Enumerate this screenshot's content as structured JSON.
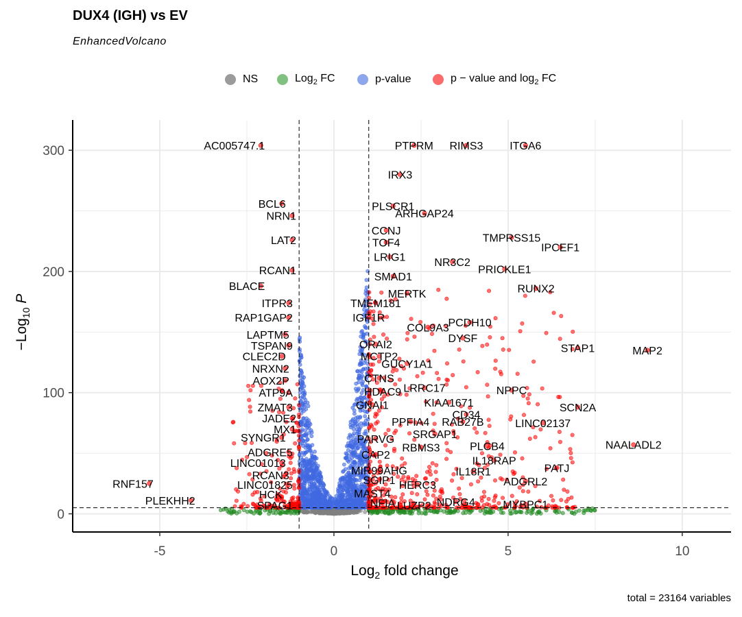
{
  "title": "DUX4 (IGH) vs EV",
  "subtitle": "EnhancedVolcano",
  "caption": "total = 23164 variables",
  "legend": [
    {
      "label": "NS",
      "color": "#808080"
    },
    {
      "label": "Log",
      "sub": "2",
      "suffix": " FC",
      "color": "#2ca02c"
    },
    {
      "label": "p-value",
      "color": "#4169e1"
    },
    {
      "label": "p − value and log",
      "sub": "2",
      "suffix": " FC",
      "color": "#ff0000"
    }
  ],
  "colors": {
    "NS": "#808080",
    "FC": "#228b22",
    "P": "#4169e1",
    "FC_P": "#ff0000",
    "grid": "#ebebeb"
  },
  "chart_data": {
    "type": "scatter",
    "xlabel": "Log2 fold change",
    "ylabel": "−Log10 P",
    "xlim": [
      -7.5,
      11.4
    ],
    "ylim": [
      -15,
      325
    ],
    "xticks": [
      -5,
      0,
      5,
      10
    ],
    "yticks": [
      0,
      100,
      200,
      300
    ],
    "fc_cutoff": [
      -1,
      1
    ],
    "p_cutoff_log10": 5,
    "grid": true,
    "labeled_genes": [
      {
        "gene": "AC005747.1",
        "x": -2.1,
        "y": 304
      },
      {
        "gene": "PTPRM",
        "x": 2.3,
        "y": 304
      },
      {
        "gene": "RIMS3",
        "x": 3.8,
        "y": 304
      },
      {
        "gene": "ITGA6",
        "x": 5.5,
        "y": 304
      },
      {
        "gene": "IRX3",
        "x": 1.9,
        "y": 280
      },
      {
        "gene": "BCL6",
        "x": -1.5,
        "y": 256
      },
      {
        "gene": "NRN1",
        "x": -1.2,
        "y": 246
      },
      {
        "gene": "PLSCR1",
        "x": 1.7,
        "y": 254
      },
      {
        "gene": "ARHGAP24",
        "x": 2.6,
        "y": 248
      },
      {
        "gene": "CCNJ",
        "x": 1.5,
        "y": 234
      },
      {
        "gene": "TOF4",
        "x": 1.5,
        "y": 224
      },
      {
        "gene": "LAT2",
        "x": -1.2,
        "y": 226
      },
      {
        "gene": "TMPRSS15",
        "x": 5.1,
        "y": 228
      },
      {
        "gene": "IPCEF1",
        "x": 6.5,
        "y": 220
      },
      {
        "gene": "LRIG1",
        "x": 1.6,
        "y": 212
      },
      {
        "gene": "NR3C2",
        "x": 3.4,
        "y": 208
      },
      {
        "gene": "PRICKLE1",
        "x": 4.9,
        "y": 202
      },
      {
        "gene": "RCAN1",
        "x": -1.2,
        "y": 201
      },
      {
        "gene": "BLACE",
        "x": -2.1,
        "y": 188
      },
      {
        "gene": "SMAD1",
        "x": 1.7,
        "y": 196
      },
      {
        "gene": "MERTK",
        "x": 2.1,
        "y": 182
      },
      {
        "gene": "RUNX2",
        "x": 5.8,
        "y": 186
      },
      {
        "gene": "ITPR3",
        "x": -1.3,
        "y": 174
      },
      {
        "gene": "TMEM181",
        "x": 1.2,
        "y": 174
      },
      {
        "gene": "RAP1GAP2",
        "x": -1.3,
        "y": 162
      },
      {
        "gene": "IGF1R",
        "x": 1.0,
        "y": 162
      },
      {
        "gene": "COL9A3",
        "x": 2.7,
        "y": 154
      },
      {
        "gene": "PCDH10",
        "x": 3.9,
        "y": 158
      },
      {
        "gene": "LAPTM5",
        "x": -1.4,
        "y": 148
      },
      {
        "gene": "DYSF",
        "x": 3.7,
        "y": 145
      },
      {
        "gene": "STAP1",
        "x": 7.0,
        "y": 137
      },
      {
        "gene": "MAP2",
        "x": 9.0,
        "y": 135
      },
      {
        "gene": "TSPAN9",
        "x": -1.3,
        "y": 139
      },
      {
        "gene": "ORAI2",
        "x": 1.2,
        "y": 140
      },
      {
        "gene": "CLEC2D",
        "x": -1.5,
        "y": 130
      },
      {
        "gene": "MCTP2",
        "x": 1.3,
        "y": 130
      },
      {
        "gene": "GUCY1A1",
        "x": 2.1,
        "y": 124
      },
      {
        "gene": "NRXN2",
        "x": -1.4,
        "y": 120
      },
      {
        "gene": "CTNS",
        "x": 1.3,
        "y": 112
      },
      {
        "gene": "AOX2P",
        "x": -1.4,
        "y": 110
      },
      {
        "gene": "LRRC17",
        "x": 2.6,
        "y": 104
      },
      {
        "gene": "HDAC9",
        "x": 1.4,
        "y": 101
      },
      {
        "gene": "NPPC",
        "x": 5.1,
        "y": 102
      },
      {
        "gene": "ATP9A",
        "x": -1.3,
        "y": 100
      },
      {
        "gene": "KIAA1671",
        "x": 3.3,
        "y": 92
      },
      {
        "gene": "ZMAT3",
        "x": -1.3,
        "y": 88
      },
      {
        "gene": "GNAI1",
        "x": 1.1,
        "y": 90
      },
      {
        "gene": "SCN2A",
        "x": 7.0,
        "y": 88
      },
      {
        "gene": "CD34",
        "x": 3.8,
        "y": 82
      },
      {
        "gene": "JADE2",
        "x": -1.2,
        "y": 79
      },
      {
        "gene": "LINC02137",
        "x": 6.0,
        "y": 75
      },
      {
        "gene": "PPFIA4",
        "x": 2.2,
        "y": 76
      },
      {
        "gene": "RAB27B",
        "x": 3.7,
        "y": 76
      },
      {
        "gene": "MX1",
        "x": -1.2,
        "y": 70
      },
      {
        "gene": "SRGAP1",
        "x": 2.9,
        "y": 66
      },
      {
        "gene": "SYNGR1",
        "x": -1.5,
        "y": 63
      },
      {
        "gene": "PARVG",
        "x": 1.2,
        "y": 62
      },
      {
        "gene": "PLCB4",
        "x": 4.4,
        "y": 56
      },
      {
        "gene": "NAALADL2",
        "x": 8.6,
        "y": 57
      },
      {
        "gene": "ADGRE5",
        "x": -1.3,
        "y": 51
      },
      {
        "gene": "RBMS3",
        "x": 2.5,
        "y": 55
      },
      {
        "gene": "CAP2",
        "x": 1.2,
        "y": 49
      },
      {
        "gene": "IL18RAP",
        "x": 4.6,
        "y": 44
      },
      {
        "gene": "LINC01013",
        "x": -1.5,
        "y": 42
      },
      {
        "gene": "PATJ",
        "x": 6.4,
        "y": 38
      },
      {
        "gene": "MIR99AHG",
        "x": 1.3,
        "y": 36
      },
      {
        "gene": "IL18R1",
        "x": 4.0,
        "y": 35
      },
      {
        "gene": "RCAN3",
        "x": -1.4,
        "y": 32
      },
      {
        "gene": "SGIP1",
        "x": 1.3,
        "y": 28
      },
      {
        "gene": "ADGRL2",
        "x": 5.5,
        "y": 27
      },
      {
        "gene": "RNF157",
        "x": -5.3,
        "y": 25
      },
      {
        "gene": "LINC01825",
        "x": -1.3,
        "y": 24
      },
      {
        "gene": "HERC3",
        "x": 2.4,
        "y": 24
      },
      {
        "gene": "MAST4",
        "x": 1.1,
        "y": 17
      },
      {
        "gene": "HCK",
        "x": -1.6,
        "y": 16
      },
      {
        "gene": "PLEKHH2",
        "x": -4.1,
        "y": 11
      },
      {
        "gene": "NFIA",
        "x": 1.4,
        "y": 9
      },
      {
        "gene": "NDRG4",
        "x": 3.5,
        "y": 10
      },
      {
        "gene": "MYBPC1",
        "x": 5.5,
        "y": 8
      },
      {
        "gene": "SPAG1",
        "x": -1.3,
        "y": 7
      },
      {
        "gene": "LUZP2",
        "x": 2.3,
        "y": 7
      }
    ]
  }
}
